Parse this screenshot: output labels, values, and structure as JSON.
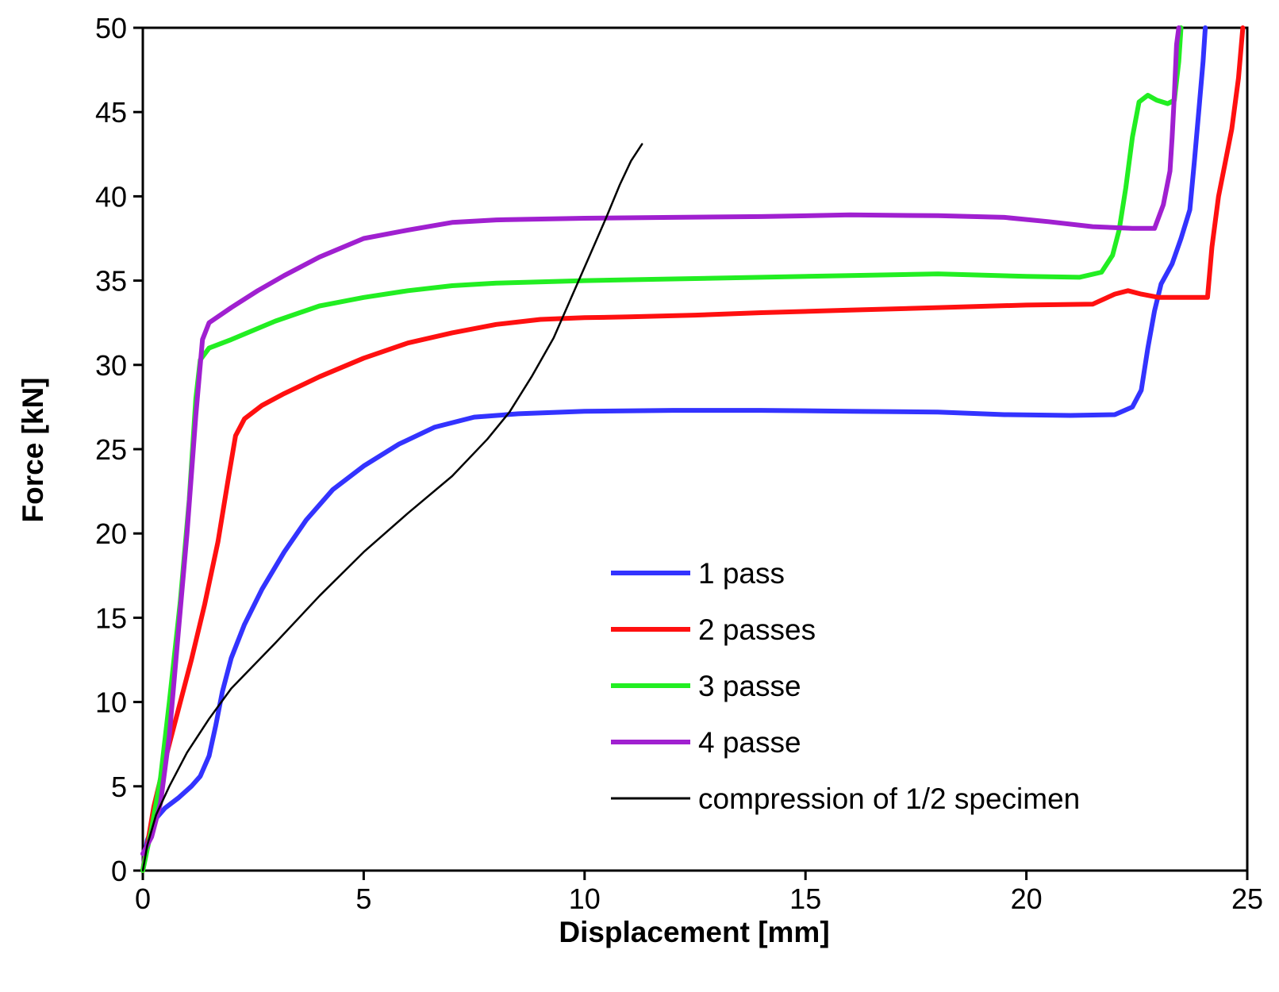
{
  "chart_data": {
    "type": "line",
    "title": "",
    "xlabel": "Displacement  [mm]",
    "ylabel": "Force [kN]",
    "xlim": [
      0,
      25
    ],
    "ylim": [
      0,
      50
    ],
    "xticks": [
      0,
      5,
      10,
      15,
      20,
      25
    ],
    "yticks": [
      0,
      5,
      10,
      15,
      20,
      25,
      30,
      35,
      40,
      45,
      50
    ],
    "grid": false,
    "legend_position": "lower-right",
    "series": [
      {
        "name": "1 pass",
        "color": "#3333ff",
        "stroke": "thick",
        "points": [
          [
            0,
            0
          ],
          [
            0.1,
            1.8
          ],
          [
            0.3,
            3.1
          ],
          [
            0.5,
            3.7
          ],
          [
            0.8,
            4.3
          ],
          [
            1.1,
            5.0
          ],
          [
            1.3,
            5.6
          ],
          [
            1.5,
            6.8
          ],
          [
            1.65,
            8.6
          ],
          [
            1.8,
            10.6
          ],
          [
            2.0,
            12.6
          ],
          [
            2.3,
            14.6
          ],
          [
            2.7,
            16.7
          ],
          [
            3.2,
            18.9
          ],
          [
            3.7,
            20.8
          ],
          [
            4.3,
            22.6
          ],
          [
            5.0,
            24.0
          ],
          [
            5.8,
            25.3
          ],
          [
            6.6,
            26.3
          ],
          [
            7.5,
            26.9
          ],
          [
            8.5,
            27.1
          ],
          [
            10,
            27.25
          ],
          [
            12,
            27.3
          ],
          [
            14,
            27.3
          ],
          [
            16,
            27.25
          ],
          [
            18,
            27.2
          ],
          [
            19.5,
            27.05
          ],
          [
            21,
            27.0
          ],
          [
            22.0,
            27.05
          ],
          [
            22.4,
            27.5
          ],
          [
            22.6,
            28.5
          ],
          [
            22.75,
            31.0
          ],
          [
            22.9,
            33.2
          ],
          [
            23.05,
            34.8
          ],
          [
            23.3,
            36.0
          ],
          [
            23.5,
            37.5
          ],
          [
            23.7,
            39.2
          ],
          [
            23.8,
            42.0
          ],
          [
            23.9,
            45.0
          ],
          [
            24.0,
            48.0
          ],
          [
            24.05,
            50.0
          ]
        ]
      },
      {
        "name": "2 passes",
        "color": "#ff1010",
        "stroke": "thick",
        "points": [
          [
            0,
            0
          ],
          [
            0.1,
            1.5
          ],
          [
            0.25,
            3.8
          ],
          [
            0.5,
            6.5
          ],
          [
            0.8,
            9.5
          ],
          [
            1.1,
            12.5
          ],
          [
            1.4,
            15.8
          ],
          [
            1.7,
            19.5
          ],
          [
            1.95,
            23.5
          ],
          [
            2.1,
            25.8
          ],
          [
            2.3,
            26.8
          ],
          [
            2.7,
            27.6
          ],
          [
            3.2,
            28.3
          ],
          [
            4.0,
            29.3
          ],
          [
            5.0,
            30.4
          ],
          [
            6.0,
            31.3
          ],
          [
            7.0,
            31.9
          ],
          [
            8.0,
            32.4
          ],
          [
            9.0,
            32.7
          ],
          [
            10,
            32.8
          ],
          [
            11,
            32.85
          ],
          [
            12.5,
            32.95
          ],
          [
            14,
            33.1
          ],
          [
            16,
            33.25
          ],
          [
            18,
            33.4
          ],
          [
            20,
            33.55
          ],
          [
            21.5,
            33.6
          ],
          [
            22.0,
            34.2
          ],
          [
            22.3,
            34.4
          ],
          [
            22.6,
            34.2
          ],
          [
            23.0,
            34.0
          ],
          [
            23.8,
            34.0
          ],
          [
            24.1,
            34.0
          ],
          [
            24.2,
            37.0
          ],
          [
            24.35,
            40.0
          ],
          [
            24.5,
            42.0
          ],
          [
            24.65,
            44.0
          ],
          [
            24.8,
            47.0
          ],
          [
            24.9,
            50.0
          ]
        ]
      },
      {
        "name": "3 passe",
        "color": "#22ee22",
        "stroke": "thick",
        "points": [
          [
            0,
            0
          ],
          [
            0.2,
            2.5
          ],
          [
            0.4,
            5.5
          ],
          [
            0.6,
            10.0
          ],
          [
            0.85,
            16.0
          ],
          [
            1.05,
            22.0
          ],
          [
            1.2,
            28.0
          ],
          [
            1.3,
            30.3
          ],
          [
            1.5,
            31.0
          ],
          [
            2.0,
            31.5
          ],
          [
            3.0,
            32.6
          ],
          [
            4.0,
            33.5
          ],
          [
            5.0,
            34.0
          ],
          [
            6.0,
            34.4
          ],
          [
            7.0,
            34.7
          ],
          [
            8.0,
            34.85
          ],
          [
            10,
            35.0
          ],
          [
            12,
            35.1
          ],
          [
            14,
            35.2
          ],
          [
            16,
            35.3
          ],
          [
            18,
            35.4
          ],
          [
            20,
            35.25
          ],
          [
            21.2,
            35.2
          ],
          [
            21.7,
            35.5
          ],
          [
            21.95,
            36.5
          ],
          [
            22.1,
            38.0
          ],
          [
            22.25,
            40.5
          ],
          [
            22.4,
            43.5
          ],
          [
            22.55,
            45.6
          ],
          [
            22.75,
            46.0
          ],
          [
            22.95,
            45.7
          ],
          [
            23.2,
            45.5
          ],
          [
            23.35,
            45.7
          ],
          [
            23.45,
            48.0
          ],
          [
            23.5,
            50.0
          ]
        ]
      },
      {
        "name": "4 passe",
        "color": "#a020d0",
        "stroke": "thick",
        "points": [
          [
            0,
            1.0
          ],
          [
            0.2,
            2.0
          ],
          [
            0.4,
            4.0
          ],
          [
            0.6,
            8.0
          ],
          [
            0.8,
            14.0
          ],
          [
            1.0,
            20.0
          ],
          [
            1.2,
            27.0
          ],
          [
            1.35,
            31.5
          ],
          [
            1.5,
            32.5
          ],
          [
            2.0,
            33.4
          ],
          [
            2.6,
            34.4
          ],
          [
            3.2,
            35.3
          ],
          [
            4.0,
            36.4
          ],
          [
            5.0,
            37.5
          ],
          [
            6.0,
            38.0
          ],
          [
            7.0,
            38.45
          ],
          [
            8.0,
            38.6
          ],
          [
            10,
            38.7
          ],
          [
            12,
            38.75
          ],
          [
            14,
            38.8
          ],
          [
            16,
            38.9
          ],
          [
            18,
            38.85
          ],
          [
            19.5,
            38.75
          ],
          [
            20.5,
            38.5
          ],
          [
            21.5,
            38.2
          ],
          [
            22.4,
            38.1
          ],
          [
            22.9,
            38.1
          ],
          [
            23.1,
            39.5
          ],
          [
            23.25,
            41.5
          ],
          [
            23.3,
            43.5
          ],
          [
            23.35,
            46.0
          ],
          [
            23.4,
            49.0
          ],
          [
            23.45,
            50.0
          ]
        ]
      },
      {
        "name": "compression of 1/2 specimen",
        "color": "#000000",
        "stroke": "thin",
        "points": [
          [
            0,
            0
          ],
          [
            0.1,
            1.5
          ],
          [
            0.3,
            3.3
          ],
          [
            0.6,
            5.0
          ],
          [
            1.0,
            7.0
          ],
          [
            1.5,
            9.0
          ],
          [
            2.0,
            10.8
          ],
          [
            3.0,
            13.5
          ],
          [
            4.0,
            16.3
          ],
          [
            5.0,
            18.9
          ],
          [
            6.0,
            21.2
          ],
          [
            7.0,
            23.4
          ],
          [
            7.8,
            25.6
          ],
          [
            8.3,
            27.2
          ],
          [
            8.8,
            29.3
          ],
          [
            9.3,
            31.6
          ],
          [
            9.7,
            34.0
          ],
          [
            10.1,
            36.4
          ],
          [
            10.5,
            38.8
          ],
          [
            10.8,
            40.7
          ],
          [
            11.05,
            42.1
          ],
          [
            11.3,
            43.1
          ]
        ]
      }
    ]
  }
}
